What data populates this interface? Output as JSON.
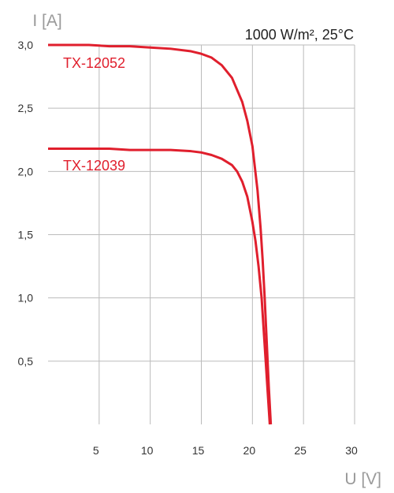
{
  "chart_data": {
    "type": "line",
    "title": "",
    "xlabel": "U [V]",
    "ylabel": "I [A]",
    "condition_label": "1000 W/m², 25°C",
    "xlim": [
      0,
      30
    ],
    "ylim": [
      0,
      3.0
    ],
    "x_ticks": [
      {
        "value": 5,
        "label": "5"
      },
      {
        "value": 10,
        "label": "10"
      },
      {
        "value": 15,
        "label": "15"
      },
      {
        "value": 20,
        "label": "20"
      },
      {
        "value": 25,
        "label": "25"
      },
      {
        "value": 30,
        "label": "30"
      }
    ],
    "y_ticks": [
      {
        "value": 0.5,
        "label": "0,5"
      },
      {
        "value": 1.0,
        "label": "1,0"
      },
      {
        "value": 1.5,
        "label": "1,5"
      },
      {
        "value": 2.0,
        "label": "2,0"
      },
      {
        "value": 2.5,
        "label": "2,5"
      },
      {
        "value": 3.0,
        "label": "3,0"
      }
    ],
    "grid": true,
    "line_color": "#e01f2d",
    "grid_color": "#bbbbbb",
    "series": [
      {
        "name": "TX-12052",
        "x": [
          0,
          2,
          4,
          6,
          8,
          10,
          12,
          14,
          15,
          16,
          17,
          18,
          19,
          19.5,
          20,
          20.5,
          20.8,
          21.0,
          21.2,
          21.4,
          21.6,
          21.8
        ],
        "y": [
          3.0,
          3.0,
          3.0,
          2.99,
          2.99,
          2.98,
          2.97,
          2.95,
          2.93,
          2.9,
          2.84,
          2.74,
          2.55,
          2.4,
          2.2,
          1.85,
          1.55,
          1.3,
          1.0,
          0.65,
          0.3,
          0.0
        ]
      },
      {
        "name": "TX-12039",
        "x": [
          0,
          2,
          4,
          6,
          8,
          10,
          12,
          14,
          15,
          16,
          17,
          18,
          18.5,
          19,
          19.5,
          20,
          20.3,
          20.6,
          20.9,
          21.1,
          21.3,
          21.5,
          21.7
        ],
        "y": [
          2.18,
          2.18,
          2.18,
          2.18,
          2.17,
          2.17,
          2.17,
          2.16,
          2.15,
          2.13,
          2.1,
          2.05,
          2.0,
          1.92,
          1.8,
          1.6,
          1.45,
          1.25,
          1.0,
          0.75,
          0.5,
          0.25,
          0.0
        ]
      }
    ]
  }
}
